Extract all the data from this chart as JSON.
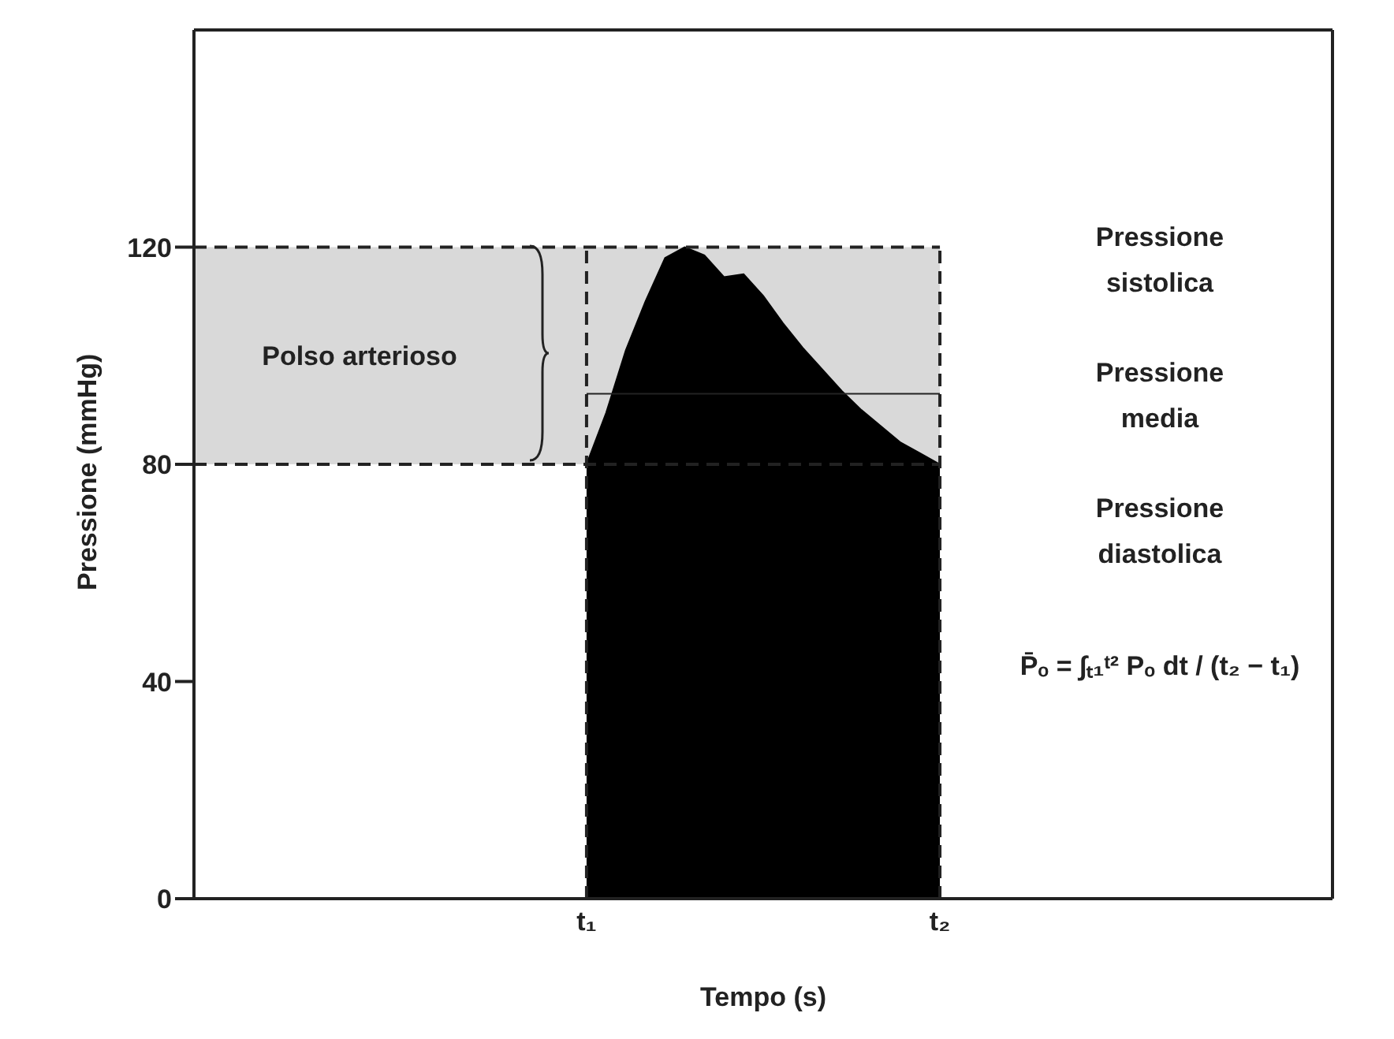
{
  "chart_data": {
    "type": "area",
    "xlabel": "Tempo (s)",
    "ylabel": "Pressione (mmHg)",
    "ylim": [
      0,
      160
    ],
    "yticks": [
      0,
      40,
      80,
      120
    ],
    "categories": [
      null,
      null,
      null,
      null,
      null,
      null,
      null,
      null,
      null,
      null,
      null,
      null,
      null,
      null,
      null,
      null,
      null,
      null,
      null,
      null,
      "t₁",
      null,
      null,
      null,
      null,
      null,
      null,
      null,
      null,
      null,
      null,
      null,
      null,
      null,
      null,
      null,
      null,
      null,
      "t₂",
      null,
      null,
      null,
      null,
      null,
      null,
      null,
      null,
      null,
      null,
      null,
      null,
      null,
      null,
      null,
      null,
      null,
      null,
      null,
      null
    ],
    "series": [
      {
        "color": "#000000",
        "values": [
          null,
          null,
          null,
          null,
          null,
          null,
          null,
          null,
          null,
          null,
          null,
          null,
          null,
          null,
          null,
          null,
          null,
          null,
          null,
          null,
          80,
          89.5,
          101,
          110,
          118,
          120,
          118.5,
          114.5,
          115,
          111,
          106,
          101.5,
          97.5,
          93.5,
          90,
          87,
          84,
          82,
          80,
          null,
          null,
          null,
          null,
          null,
          null,
          null,
          null,
          null,
          null,
          null,
          null,
          null,
          null,
          null,
          null,
          null,
          null,
          null,
          null
        ]
      }
    ],
    "bands": [
      {
        "axis": "y",
        "from": 80,
        "to": 120,
        "label": "Polso arterioso",
        "color": "#d9d9d9"
      }
    ],
    "ref_lines": [
      {
        "axis": "y",
        "value": 120,
        "line_style": "dashed"
      },
      {
        "axis": "y",
        "value": 93,
        "line_style": "solid"
      },
      {
        "axis": "y",
        "value": 80,
        "line_style": "dashed"
      },
      {
        "axis": "x",
        "value": "t₁",
        "line_style": "dashed"
      },
      {
        "axis": "x",
        "value": "t₂",
        "line_style": "dashed"
      }
    ],
    "annotations": [
      "Pressione sistolica",
      "Pressione media",
      "Pressione diastolica",
      "P̄ₒ = ∫ₜ₁ᵗ² Pₒ dt / (t₂ − t₁)"
    ],
    "marker": "none"
  }
}
